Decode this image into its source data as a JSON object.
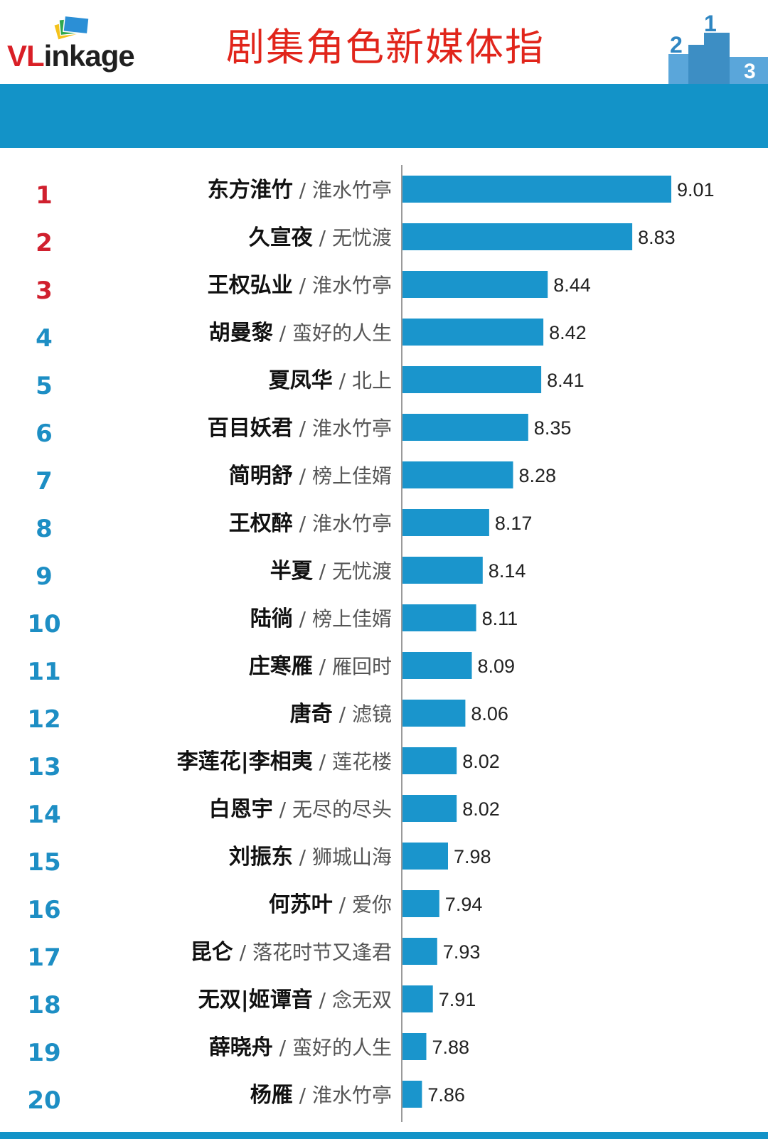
{
  "header": {
    "logo_vl": "VL",
    "logo_rest": "inkage",
    "title": "剧集角色新媒体指",
    "podium_numbers": [
      "2",
      "1",
      "3"
    ]
  },
  "colors": {
    "bar": "#1a95cc",
    "top_rank": "#d0202e",
    "rank": "#1d8ec4",
    "banner": "#1393c8",
    "title": "#e1251b"
  },
  "chart_data": {
    "type": "bar",
    "orientation": "horizontal",
    "categories": [
      {
        "rank": "1",
        "name": "东方淮竹",
        "show": "淮水竹亭"
      },
      {
        "rank": "2",
        "name": "久宣夜",
        "show": "无忧渡"
      },
      {
        "rank": "3",
        "name": "王权弘业",
        "show": "淮水竹亭"
      },
      {
        "rank": "4",
        "name": "胡曼黎",
        "show": "蛮好的人生"
      },
      {
        "rank": "5",
        "name": "夏凤华",
        "show": "北上"
      },
      {
        "rank": "6",
        "name": "百目妖君",
        "show": "淮水竹亭"
      },
      {
        "rank": "7",
        "name": "简明舒",
        "show": "榜上佳婿"
      },
      {
        "rank": "8",
        "name": "王权醉",
        "show": "淮水竹亭"
      },
      {
        "rank": "9",
        "name": "半夏",
        "show": "无忧渡"
      },
      {
        "rank": "10",
        "name": "陆徜",
        "show": "榜上佳婿"
      },
      {
        "rank": "11",
        "name": "庄寒雁",
        "show": "雁回时"
      },
      {
        "rank": "12",
        "name": "唐奇",
        "show": "滤镜"
      },
      {
        "rank": "13",
        "name": "李莲花|李相夷",
        "show": "莲花楼"
      },
      {
        "rank": "14",
        "name": "白恩宇",
        "show": "无尽的尽头"
      },
      {
        "rank": "15",
        "name": "刘振东",
        "show": "狮城山海"
      },
      {
        "rank": "16",
        "name": "何苏叶",
        "show": "爱你"
      },
      {
        "rank": "17",
        "name": "昆仑",
        "show": "落花时节又逢君"
      },
      {
        "rank": "18",
        "name": "无双|姬谭音",
        "show": "念无双"
      },
      {
        "rank": "19",
        "name": "薛晓舟",
        "show": "蛮好的人生"
      },
      {
        "rank": "20",
        "name": "杨雁",
        "show": "淮水竹亭"
      }
    ],
    "values": [
      9.01,
      8.83,
      8.44,
      8.42,
      8.41,
      8.35,
      8.28,
      8.17,
      8.14,
      8.11,
      8.09,
      8.06,
      8.02,
      8.02,
      7.98,
      7.94,
      7.93,
      7.91,
      7.88,
      7.86
    ],
    "value_labels": [
      "9.01",
      "8.83",
      "8.44",
      "8.42",
      "8.41",
      "8.35",
      "8.28",
      "8.17",
      "8.14",
      "8.11",
      "8.09",
      "8.06",
      "8.02",
      "8.02",
      "7.98",
      "7.94",
      "7.93",
      "7.91",
      "7.88",
      "7.86"
    ],
    "name_separator": "/",
    "xlim": [
      7.77,
      9.01
    ],
    "grid": false,
    "legend": "none"
  }
}
